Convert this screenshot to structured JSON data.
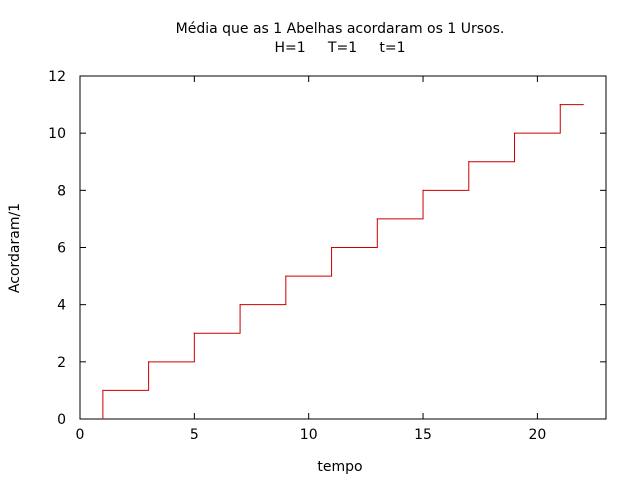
{
  "chart_data": {
    "type": "line",
    "title": "Média que as 1 Abelhas acordaram os 1 Ursos.",
    "subtitle": "H=1     T=1     t=1",
    "xlabel": "tempo",
    "ylabel": "Acordaram/1",
    "xlim": [
      0,
      23
    ],
    "ylim": [
      0,
      12
    ],
    "xticks": [
      0,
      5,
      10,
      15,
      20
    ],
    "yticks": [
      0,
      2,
      4,
      6,
      8,
      10,
      12
    ],
    "grid": false,
    "step": "post",
    "line_color": "#cc0000",
    "series": [
      {
        "x": [
          1,
          1,
          3,
          5,
          7,
          9,
          11,
          13,
          15,
          17,
          19,
          21,
          22
        ],
        "y": [
          0,
          1,
          2,
          3,
          4,
          5,
          6,
          7,
          8,
          9,
          10,
          11,
          11
        ]
      }
    ]
  }
}
